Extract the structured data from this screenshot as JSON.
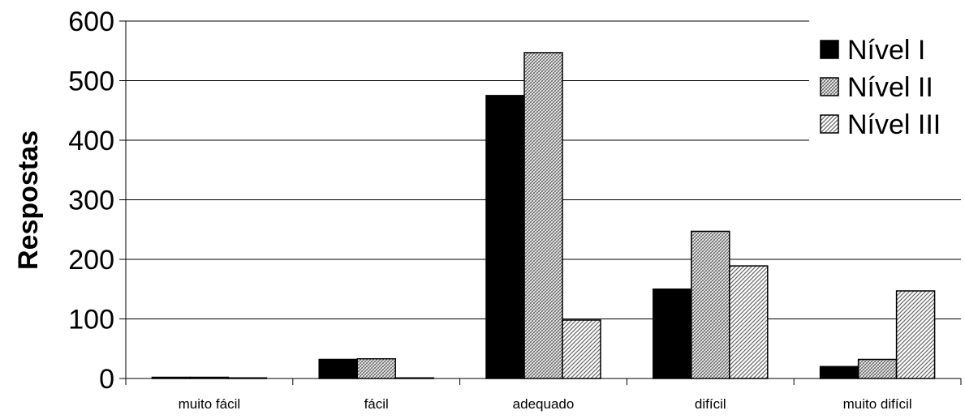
{
  "chart_data": {
    "type": "bar",
    "categories": [
      "muito fácil",
      "fácil",
      "adequado",
      "difícil",
      "muito difícil"
    ],
    "series": [
      {
        "name": "Nível I",
        "values": [
          2,
          32,
          475,
          150,
          20
        ],
        "pattern": "solid",
        "color": "#000000"
      },
      {
        "name": "Nível II",
        "values": [
          2,
          33,
          547,
          247,
          32
        ],
        "pattern": "dense-hatch",
        "color": "#bdbdbd"
      },
      {
        "name": "Nível III",
        "values": [
          1,
          1,
          98,
          189,
          147
        ],
        "pattern": "diagonal-hatch",
        "color": "#d0d0d0"
      }
    ],
    "ylabel": "Respostas",
    "xlabel": "",
    "ylim": [
      0,
      600
    ],
    "yticks": [
      "0",
      "100",
      "200",
      "300",
      "400",
      "500",
      "600"
    ],
    "grid": true,
    "legend_position": "top-right"
  }
}
